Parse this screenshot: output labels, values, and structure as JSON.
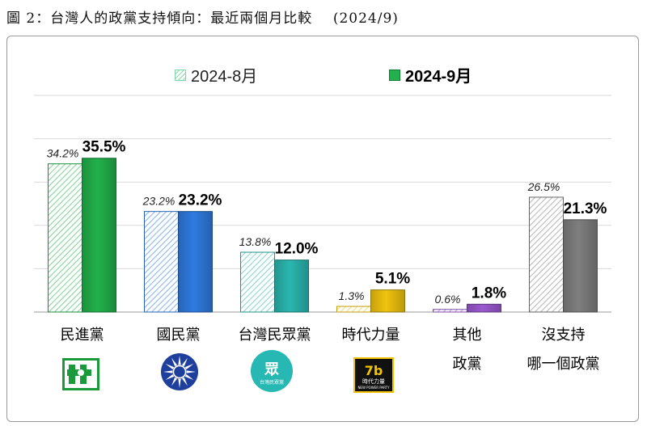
{
  "title": "圖 2：台灣人的政黨支持傾向：最近兩個月比較    (2024/9)",
  "legend": [
    {
      "name": "2024-8月",
      "style": "hatched"
    },
    {
      "name": "2024-9月",
      "style": "solid"
    }
  ],
  "chart_data": {
    "type": "bar",
    "categories": [
      "民進黨",
      "國民黨",
      "台灣民眾黨",
      "時代力量",
      "其他政黨",
      "沒支持哪一個政黨"
    ],
    "category_label_lines": [
      [
        "民進黨"
      ],
      [
        "國民黨"
      ],
      [
        "台灣民眾黨"
      ],
      [
        "時代力量"
      ],
      [
        "其他",
        "政黨"
      ],
      [
        "沒支持",
        "哪一個政黨"
      ]
    ],
    "series": [
      {
        "name": "2024-8月",
        "values": [
          34.2,
          23.2,
          13.8,
          1.3,
          0.6,
          26.5
        ],
        "labels": [
          "34.2%",
          "23.2%",
          "13.8%",
          "1.3%",
          "0.6%",
          "26.5%"
        ]
      },
      {
        "name": "2024-9月",
        "values": [
          35.5,
          23.2,
          12.0,
          5.1,
          1.8,
          21.3
        ],
        "labels": [
          "35.5%",
          "23.2%",
          "12.0%",
          "5.1%",
          "1.8%",
          "21.3%"
        ]
      }
    ],
    "colors": [
      "#22b14c",
      "#2f7be0",
      "#2ab7b0",
      "#f1c40f",
      "#9b59d0",
      "#7f7f7f"
    ],
    "ylim": [
      0,
      50
    ],
    "grid": true,
    "legend_position": "top"
  },
  "logos": {
    "dpp": "dpp-logo",
    "kmt": "kmt-logo",
    "tpp": {
      "name": "tpp-logo",
      "text": "台灣民眾黨"
    },
    "npp": {
      "name": "npp-logo",
      "text": "時代力量",
      "subtext": "NEW POWER PARTY"
    }
  }
}
